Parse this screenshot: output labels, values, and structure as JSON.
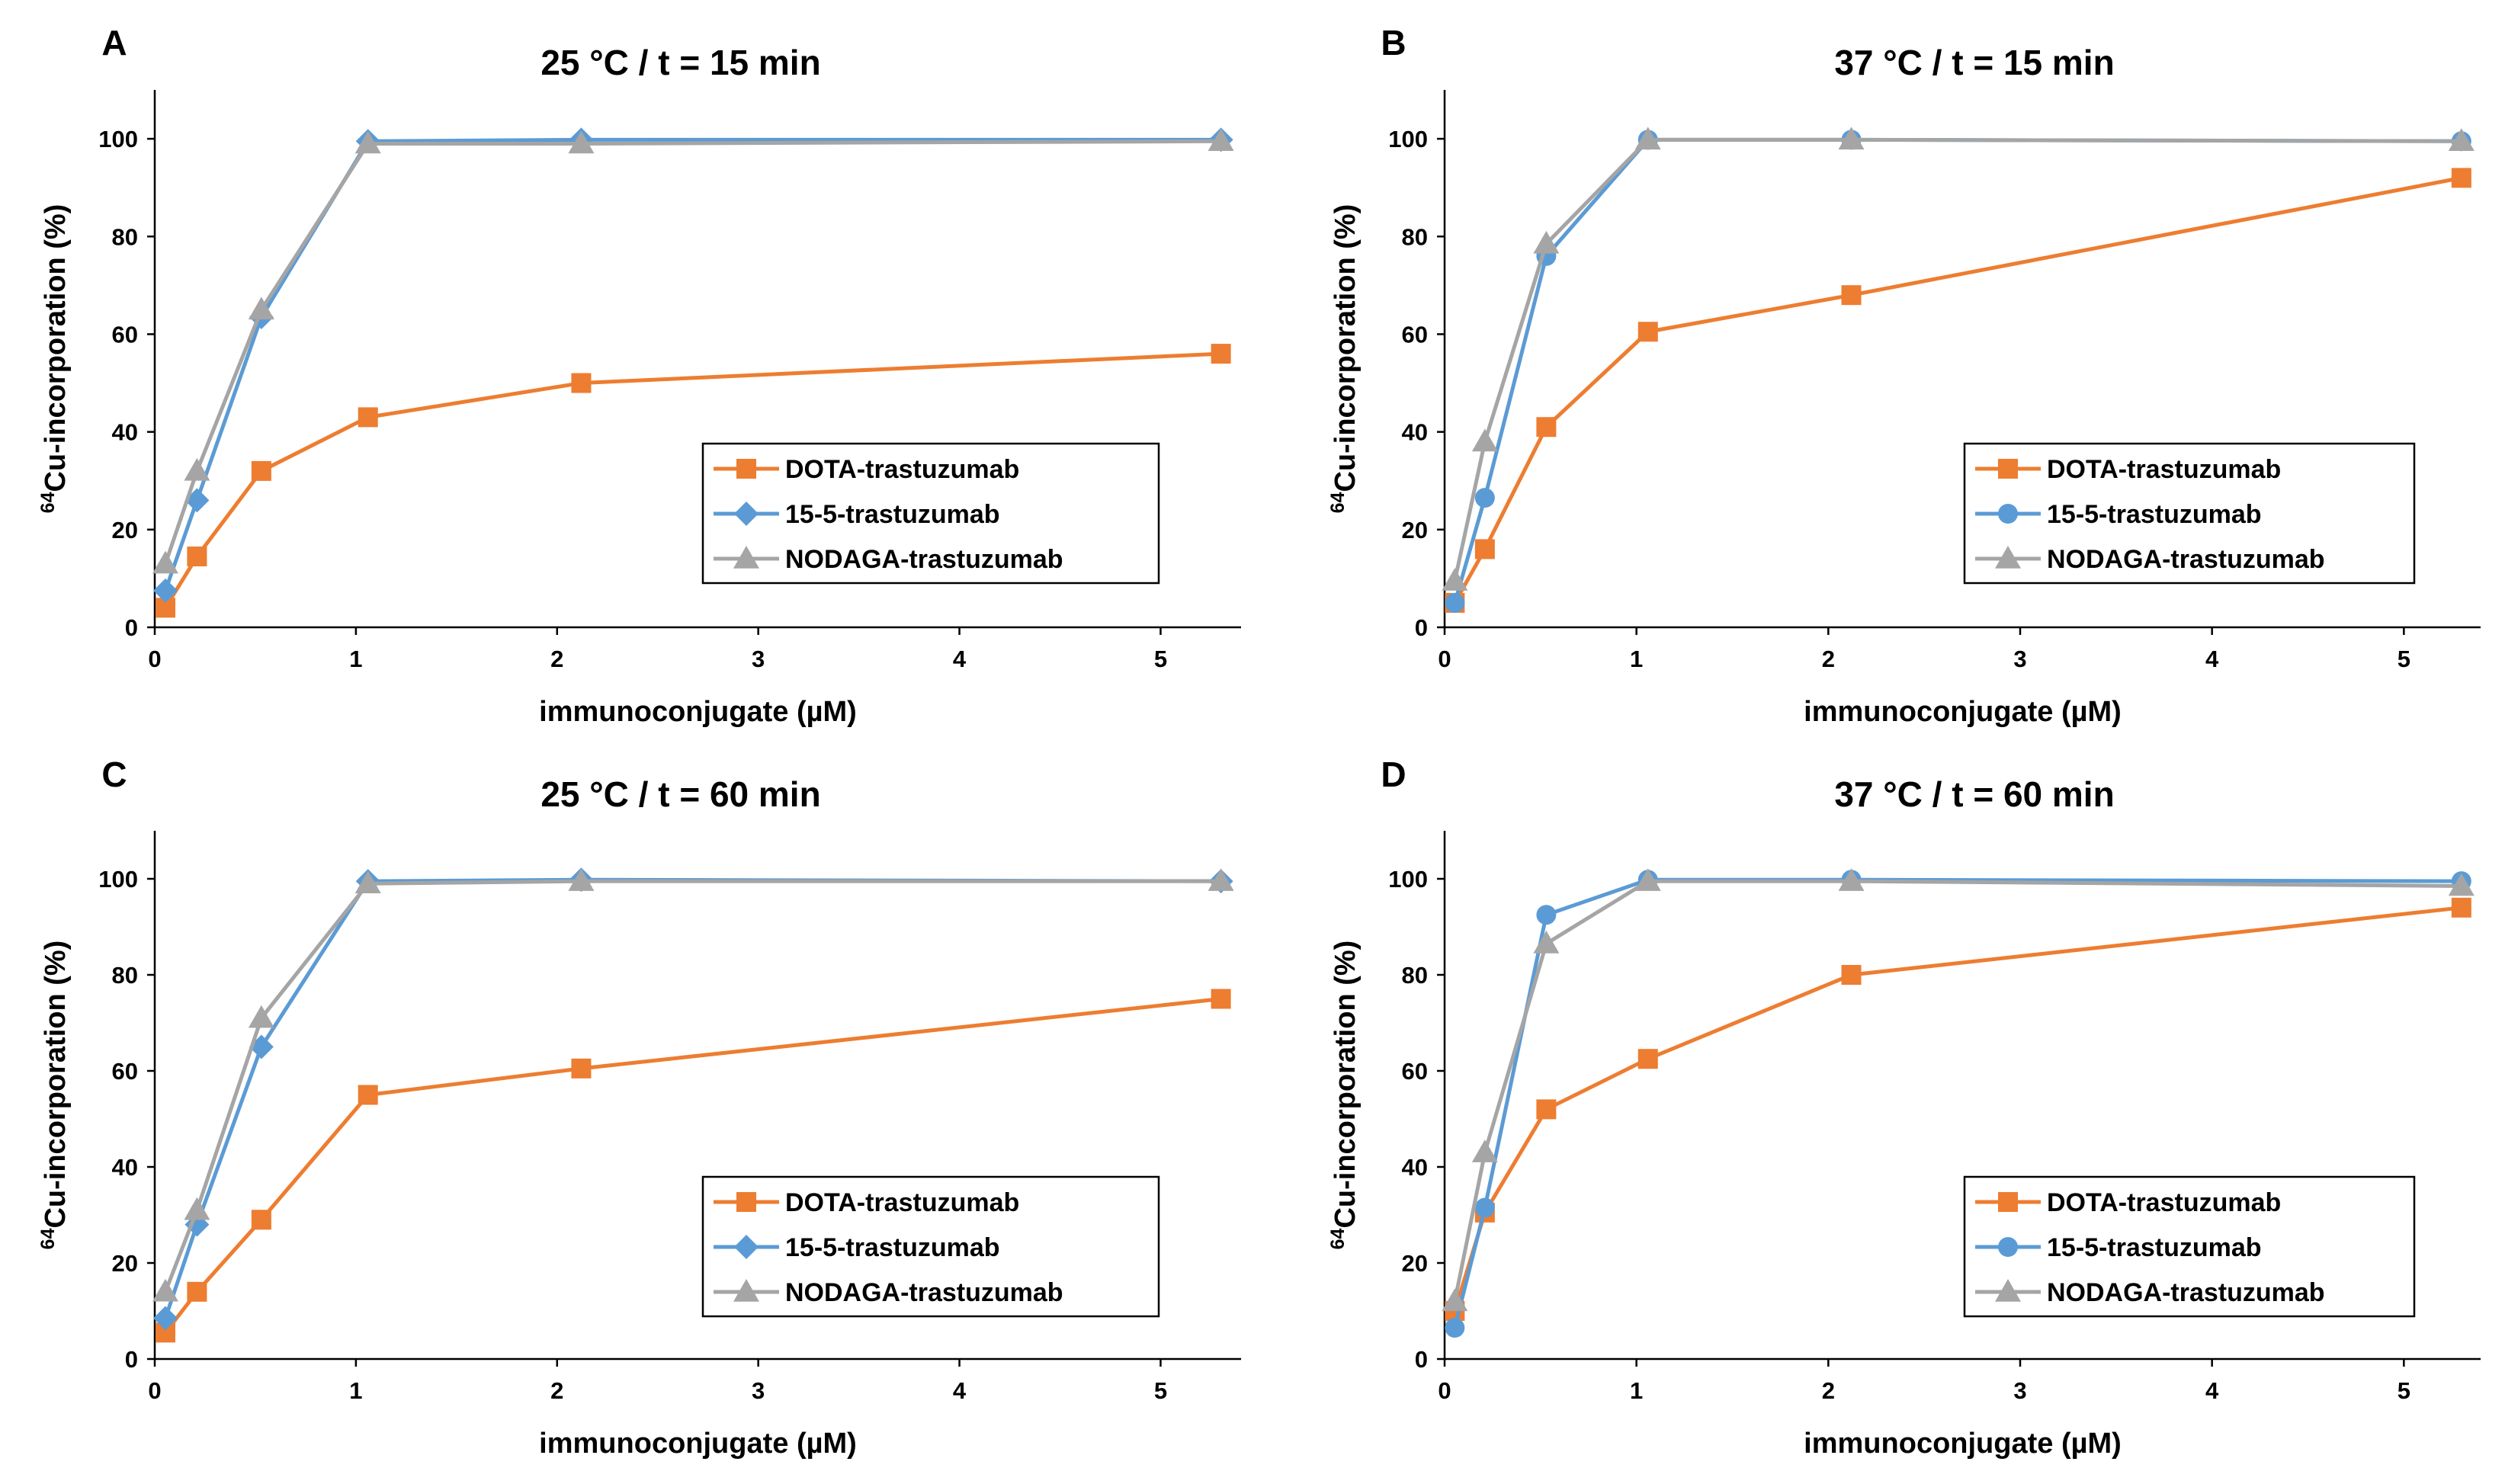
{
  "colors": {
    "DOTA-trastuzumab": "#ED7D31",
    "15-5-trastuzumab": "#5B9BD5",
    "NODAGA-trastuzumab": "#A5A5A5"
  },
  "chart_data": [
    {
      "type": "line",
      "panel": "A",
      "title": "25 °C / t = 15 min",
      "xlabel": "immunoconjugate (µM)",
      "ylabel_sup": "64",
      "ylabel": "Cu-incorporation (%)",
      "xlim": [
        0,
        5.4
      ],
      "ylim": [
        0,
        110
      ],
      "xticks": [
        0,
        1,
        2,
        3,
        4,
        5
      ],
      "yticks": [
        0,
        20,
        40,
        60,
        80,
        100
      ],
      "x": [
        0.053,
        0.21,
        0.53,
        1.06,
        2.12,
        5.3
      ],
      "series": [
        {
          "name": "DOTA-trastuzumab",
          "marker": "square",
          "values": [
            4,
            14.5,
            32,
            43,
            50,
            56
          ]
        },
        {
          "name": "15-5-trastuzumab",
          "marker": "diamond",
          "values": [
            7.5,
            26,
            63.5,
            99.5,
            99.8,
            99.8
          ]
        },
        {
          "name": "NODAGA-trastuzumab",
          "marker": "triangle",
          "values": [
            13,
            32,
            65,
            99,
            99,
            99.5
          ]
        }
      ]
    },
    {
      "type": "line",
      "panel": "B",
      "title": "37 °C / t = 15 min",
      "xlabel": "immunoconjugate (µM)",
      "ylabel_sup": "64",
      "ylabel": "Cu-incorporation (%)",
      "xlim": [
        0,
        5.4
      ],
      "ylim": [
        0,
        110
      ],
      "xticks": [
        0,
        1,
        2,
        3,
        4,
        5
      ],
      "yticks": [
        0,
        20,
        40,
        60,
        80,
        100
      ],
      "x": [
        0.053,
        0.21,
        0.53,
        1.06,
        2.12,
        5.3
      ],
      "series": [
        {
          "name": "DOTA-trastuzumab",
          "marker": "square",
          "values": [
            5,
            16,
            41,
            60.5,
            68,
            92
          ]
        },
        {
          "name": "15-5-trastuzumab",
          "marker": "circle",
          "values": [
            5,
            26.5,
            76,
            99.8,
            99.8,
            99.5
          ]
        },
        {
          "name": "NODAGA-trastuzumab",
          "marker": "triangle",
          "values": [
            9.5,
            38,
            78.5,
            99.8,
            99.8,
            99.5
          ]
        }
      ]
    },
    {
      "type": "line",
      "panel": "C",
      "title": "25 °C / t = 60 min",
      "xlabel": "immunoconjugate (µM)",
      "ylabel_sup": "64",
      "ylabel": "Cu-incorporation (%)",
      "xlim": [
        0,
        5.4
      ],
      "ylim": [
        0,
        110
      ],
      "xticks": [
        0,
        1,
        2,
        3,
        4,
        5
      ],
      "yticks": [
        0,
        20,
        40,
        60,
        80,
        100
      ],
      "x": [
        0.053,
        0.21,
        0.53,
        1.06,
        2.12,
        5.3
      ],
      "series": [
        {
          "name": "DOTA-trastuzumab",
          "marker": "square",
          "values": [
            5.5,
            14,
            29,
            55,
            60.5,
            75
          ]
        },
        {
          "name": "15-5-trastuzumab",
          "marker": "diamond",
          "values": [
            8.5,
            28,
            65,
            99.5,
            99.8,
            99.5
          ]
        },
        {
          "name": "NODAGA-trastuzumab",
          "marker": "triangle",
          "values": [
            14,
            31,
            71,
            99,
            99.5,
            99.5
          ]
        }
      ]
    },
    {
      "type": "line",
      "panel": "D",
      "title": "37 °C / t = 60 min",
      "xlabel": "immunoconjugate (µM)",
      "ylabel_sup": "64",
      "ylabel": "Cu-incorporation (%)",
      "xlim": [
        0,
        5.4
      ],
      "ylim": [
        0,
        110
      ],
      "xticks": [
        0,
        1,
        2,
        3,
        4,
        5
      ],
      "yticks": [
        0,
        20,
        40,
        60,
        80,
        100
      ],
      "x": [
        0.053,
        0.21,
        0.53,
        1.06,
        2.12,
        5.3
      ],
      "series": [
        {
          "name": "DOTA-trastuzumab",
          "marker": "square",
          "values": [
            10,
            30.5,
            52,
            62.5,
            80,
            94
          ]
        },
        {
          "name": "15-5-trastuzumab",
          "marker": "circle",
          "values": [
            6.5,
            31.5,
            92.5,
            99.8,
            99.8,
            99.5
          ]
        },
        {
          "name": "NODAGA-trastuzumab",
          "marker": "triangle",
          "values": [
            12,
            43,
            86.5,
            99.5,
            99.5,
            98.5
          ]
        }
      ]
    }
  ]
}
